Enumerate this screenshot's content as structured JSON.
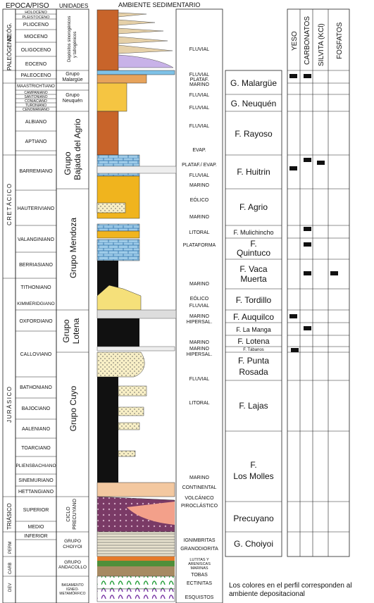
{
  "headers": {
    "epoca": "EPOCA/PISO",
    "unidades": "UNIDADES",
    "ambiente": "AMBIENTE SEDIMENTARIO",
    "mineral_cols": [
      "YESO",
      "CARBONATOS",
      "SILVITA (KCl)",
      "FOSFATOS"
    ]
  },
  "periods": [
    "NEÓG.",
    "PALEÓGENO",
    "CRETÁCICO",
    "JURÁSICO",
    "TRIÁSICO",
    "PERM",
    "CARB",
    "DEV"
  ],
  "stages": [
    "HOLOCENO",
    "PLEISTOCENO",
    "PLIOCENO",
    "MIOCENO",
    "OLIGOCENO",
    "EOCENO",
    "PALEOCENO",
    "MAASTRICHTIANO",
    "CAMPANIANO",
    "SANTONIANO",
    "CONIACIANO",
    "TURONIANO",
    "CENOMANIANO",
    "ALBIANO",
    "APTIANO",
    "BARREMIANO",
    "HAUTERIVIANO",
    "VALANGINIANO",
    "BERRIASIANO",
    "TITHONIANO",
    "KIMMERIDGIANO",
    "OXFORDIANO",
    "CALLOVIANO",
    "BATHONIANO",
    "BAJOCIANO",
    "AALENIANO",
    "TOARCIANO",
    "PLIENSBACHIANO",
    "SINEMURIANO",
    "HETTANGIANO",
    "SUPERIOR",
    "MEDIO",
    "INFERIOR"
  ],
  "units": {
    "depositos": [
      "Depósitos sinorogénicos",
      "y tafrogénicos"
    ],
    "malargue": [
      "Grupo",
      "Malargüe"
    ],
    "neuquen": [
      "Grupo",
      "Neuquén"
    ],
    "bajada": [
      "Grupo",
      "Bajada del Agrio"
    ],
    "mendoza": "Grupo Mendoza",
    "lotena": [
      "Grupo",
      "Lotena"
    ],
    "cuyo": "Grupo Cuyo",
    "precuyano": [
      "CICLO",
      "PRECUYANO"
    ],
    "choiyoi": [
      "GRUPO",
      "CHOIYOI"
    ],
    "andacollo": [
      "GRUPO",
      "ANDACOLLO"
    ],
    "basamento": [
      "BASAMENTO",
      "IGNEO-",
      "METAMÓRFICO"
    ]
  },
  "environments": [
    "FLUVIAL",
    "FLUVIAL",
    "PLATAF.",
    "MARINO",
    "FLUVIAL",
    "FLUVIAL",
    "FLUVIAL",
    "EVAP.",
    "PLATAF./ EVAP.",
    "FLUVIAL",
    "MARINO",
    "EÓLICO",
    "MARINO",
    "LITORAL",
    "PLATAFORMA",
    "MARINO",
    "EÓLICO",
    "FLUVIAL",
    "MARINO",
    "HIPERSAL.",
    "MARINO",
    "MARINO",
    "HIPERSAL.",
    "FLUVIAL",
    "LITORAL",
    "MARINO",
    "CONTINENTAL",
    "VOLCÁNICO",
    "PIROCLÁSTICO",
    "IGNIMBRITAS",
    "GRANODIORITA",
    "LUTITAS Y",
    "ARENISCAS",
    "MARINAS",
    "TOBAS",
    "ECTINITAS",
    "ESQUISTOS"
  ],
  "formations": [
    "G. Malargüe",
    "G. Neuquén",
    "F. Rayoso",
    "F. Huitrin",
    "F. Agrio",
    "F. Mulichincho",
    "F.",
    "Quintuco",
    "F. Vaca",
    "Muerta",
    "F. Tordillo",
    "F. Auquilco",
    "F. La Manga",
    "F. Lotena",
    "F. Tábanos",
    "F. Punta",
    "Rosada",
    "F. Lajas",
    "F.",
    "Los Molles",
    "Precuyano",
    "G. Choiyoi"
  ],
  "note": "Los colores en el perfil corresponden al ambiente depositacional"
}
